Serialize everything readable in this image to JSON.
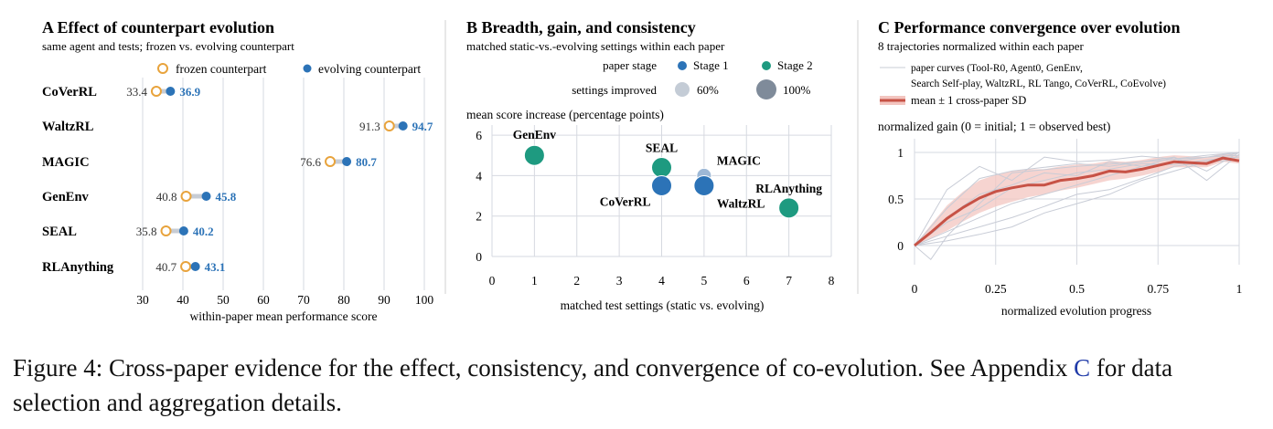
{
  "colors": {
    "frozen": "#e8a33c",
    "evolving": "#2c73b7",
    "stage2": "#1e9a80",
    "stage1_light": "#9db8d6",
    "mean_line": "#c75246",
    "band": "#f3c5c0",
    "paper_curve": "#c8ccd6",
    "grid": "#d6d9e0",
    "divider": "#d0d0d0"
  },
  "panels": {
    "a": {
      "title": "A  Effect of counterpart evolution",
      "subtitle": "same agent and tests; frozen vs. evolving counterpart",
      "legend_frozen": "frozen counterpart",
      "legend_evolving": "evolving counterpart",
      "xlabel": "within-paper mean performance score"
    },
    "b": {
      "title": "B  Breadth, gain, and consistency",
      "subtitle": "matched static-vs.-evolving settings within each paper",
      "legend_stage_title": "paper stage",
      "legend_stage1": "Stage 1",
      "legend_stage2": "Stage 2",
      "legend_improved_title": "settings improved",
      "legend_60": "60%",
      "legend_100": "100%",
      "ylabel": "mean score increase (percentage points)",
      "xlabel": "matched test settings (static vs. evolving)"
    },
    "c": {
      "title": "C  Performance convergence over evolution",
      "subtitle": "8 trajectories normalized within each paper",
      "legend_paper_line1": "paper curves (Tool-R0, Agent0, GenEnv,",
      "legend_paper_line2": "Search Self-play, WaltzRL, RL Tango, CoVerRL, CoEvolve)",
      "legend_mean": "mean ± 1 cross-paper SD",
      "ylabel": "normalized gain (0 = initial; 1 = observed best)",
      "xlabel": "normalized evolution progress"
    }
  },
  "caption": {
    "text": "Figure 4: Cross-paper evidence for the effect, consistency, and convergence of co-evolution. See Appendix ",
    "ref": "C",
    "tail": " for data selection and aggregation details."
  },
  "chart_data": [
    {
      "type": "dumbbell",
      "title": "A  Effect of counterpart evolution",
      "xlabel": "within-paper mean performance score",
      "xlim": [
        30,
        100
      ],
      "xticks": [
        30,
        40,
        50,
        60,
        70,
        80,
        90,
        100
      ],
      "grid": true,
      "categories": [
        "CoVerRL",
        "WaltzRL",
        "MAGIC",
        "GenEnv",
        "SEAL",
        "RLAnything"
      ],
      "series": [
        {
          "name": "frozen counterpart",
          "values": [
            33.4,
            91.3,
            76.6,
            40.8,
            35.8,
            40.7
          ]
        },
        {
          "name": "evolving counterpart",
          "values": [
            36.9,
            94.7,
            80.7,
            45.8,
            40.2,
            43.1
          ]
        }
      ]
    },
    {
      "type": "scatter",
      "title": "B  Breadth, gain, and consistency",
      "xlabel": "matched test settings (static vs. evolving)",
      "ylabel": "mean score increase (percentage points)",
      "xlim": [
        0,
        8
      ],
      "ylim": [
        0,
        6.5
      ],
      "xticks": [
        0,
        1,
        2,
        3,
        4,
        5,
        6,
        7,
        8
      ],
      "yticks": [
        0,
        2,
        4,
        6
      ],
      "grid": true,
      "points": [
        {
          "label": "GenEnv",
          "x": 1,
          "y": 5.0,
          "stage": 2,
          "improved": 1.0
        },
        {
          "label": "SEAL",
          "x": 4,
          "y": 4.4,
          "stage": 2,
          "improved": 1.0
        },
        {
          "label": "CoVerRL",
          "x": 4,
          "y": 3.5,
          "stage": 1,
          "improved": 1.0
        },
        {
          "label": "MAGIC",
          "x": 5,
          "y": 4.0,
          "stage": 1,
          "improved": 0.6
        },
        {
          "label": "WaltzRL",
          "x": 5,
          "y": 3.5,
          "stage": 1,
          "improved": 1.0
        },
        {
          "label": "RLAnything",
          "x": 7,
          "y": 2.4,
          "stage": 2,
          "improved": 1.0
        }
      ]
    },
    {
      "type": "line",
      "title": "C  Performance convergence over evolution",
      "xlabel": "normalized evolution progress",
      "ylabel": "normalized gain (0 = initial; 1 = observed best)",
      "xlim": [
        0,
        1
      ],
      "ylim": [
        0,
        1
      ],
      "xticks": [
        0,
        0.25,
        0.5,
        0.75,
        1
      ],
      "yticks": [
        0,
        0.5,
        1
      ],
      "grid": true,
      "mean": {
        "name": "mean ± 1 cross-paper SD",
        "x": [
          0,
          0.05,
          0.1,
          0.15,
          0.2,
          0.25,
          0.3,
          0.35,
          0.4,
          0.45,
          0.5,
          0.55,
          0.6,
          0.65,
          0.7,
          0.75,
          0.8,
          0.85,
          0.9,
          0.95,
          1
        ],
        "y": [
          0,
          0.14,
          0.29,
          0.41,
          0.51,
          0.58,
          0.62,
          0.65,
          0.65,
          0.7,
          0.72,
          0.75,
          0.8,
          0.79,
          0.82,
          0.86,
          0.9,
          0.89,
          0.88,
          0.94,
          0.91
        ],
        "lower": [
          0,
          0.08,
          0.16,
          0.26,
          0.35,
          0.42,
          0.47,
          0.52,
          0.55,
          0.59,
          0.62,
          0.66,
          0.7,
          0.72,
          0.75,
          0.79,
          0.84,
          0.84,
          0.84,
          0.9,
          0.88
        ],
        "upper": [
          0,
          0.22,
          0.43,
          0.58,
          0.7,
          0.76,
          0.8,
          0.82,
          0.82,
          0.85,
          0.87,
          0.88,
          0.91,
          0.9,
          0.92,
          0.95,
          0.97,
          0.96,
          0.95,
          0.99,
          0.97
        ]
      },
      "paper_curves": [
        {
          "x": [
            0,
            0.05,
            0.1,
            0.2,
            0.3,
            0.5,
            0.7,
            0.9,
            1
          ],
          "y": [
            0,
            -0.15,
            0.1,
            0.45,
            0.78,
            0.85,
            0.9,
            0.95,
            0.97
          ]
        },
        {
          "x": [
            0,
            0.1,
            0.2,
            0.3,
            0.4,
            0.5,
            0.6,
            0.7,
            0.8,
            0.9,
            1
          ],
          "y": [
            0,
            0.4,
            0.72,
            0.8,
            0.84,
            0.88,
            0.85,
            0.9,
            0.95,
            0.8,
            1
          ]
        },
        {
          "x": [
            0,
            0.1,
            0.2,
            0.3,
            0.4,
            0.5,
            0.6,
            0.7,
            0.8,
            0.9,
            1
          ],
          "y": [
            0,
            0.15,
            0.3,
            0.45,
            0.55,
            0.65,
            0.75,
            0.85,
            0.9,
            0.95,
            1
          ]
        },
        {
          "x": [
            0,
            0.1,
            0.2,
            0.3,
            0.4,
            0.5,
            0.6,
            0.7,
            0.8,
            0.9,
            1
          ],
          "y": [
            0,
            0.3,
            0.55,
            0.65,
            0.78,
            0.75,
            0.9,
            0.85,
            0.95,
            0.7,
            0.98
          ]
        },
        {
          "x": [
            0,
            0.1,
            0.2,
            0.3,
            0.4,
            0.5,
            0.6,
            0.7,
            0.8,
            0.9,
            1
          ],
          "y": [
            0,
            0.05,
            0.12,
            0.2,
            0.35,
            0.45,
            0.55,
            0.7,
            0.8,
            0.9,
            1
          ]
        },
        {
          "x": [
            0,
            0.1,
            0.2,
            0.3,
            0.4,
            0.5,
            0.6,
            0.7,
            0.8,
            0.9,
            1
          ],
          "y": [
            0,
            0.6,
            0.85,
            0.7,
            0.95,
            0.9,
            0.92,
            0.96,
            0.93,
            0.97,
            1
          ]
        },
        {
          "x": [
            0,
            0.1,
            0.2,
            0.3,
            0.4,
            0.5,
            0.6,
            0.7,
            0.8,
            0.9,
            1
          ],
          "y": [
            0,
            0.25,
            0.4,
            0.62,
            0.7,
            0.78,
            0.82,
            0.88,
            0.87,
            0.92,
            0.95
          ]
        },
        {
          "x": [
            0,
            0.1,
            0.2,
            0.3,
            0.4,
            0.5,
            0.6,
            0.7,
            0.8,
            0.9,
            1
          ],
          "y": [
            0,
            0.1,
            0.2,
            0.3,
            0.42,
            0.55,
            0.6,
            0.72,
            0.85,
            0.9,
            0.92
          ]
        }
      ]
    }
  ]
}
